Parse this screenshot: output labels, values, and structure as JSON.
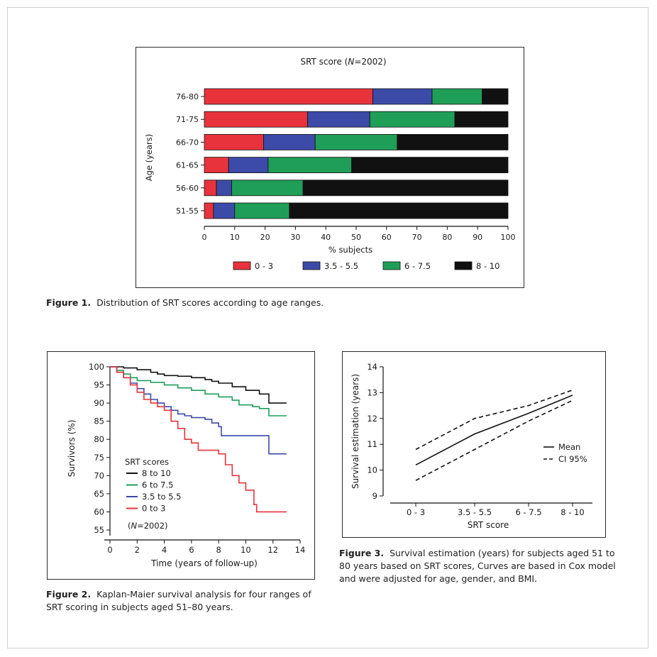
{
  "figure1": {
    "caption_label": "Figure 1.",
    "caption_text": "Distribution of SRT scores according to age ranges.",
    "title_prefix": "SRT score (",
    "title_n": "N",
    "title_suffix": "=2002)"
  },
  "figure2": {
    "caption_label": "Figure 2.",
    "caption_text": "Kaplan-Maier survival analysis for four ranges of SRT scoring in subjects aged 51–80 years.",
    "legend_title": "SRT scores",
    "n_prefix": "(",
    "n_italic": "N",
    "n_suffix": "=2002)"
  },
  "figure3": {
    "caption_label": "Figure 3.",
    "caption_text": "Survival estimation (years) for subjects aged 51 to 80 years based on SRT scores, Curves are based in Cox model and were adjusted for age, gender, and BMI."
  },
  "chart_data": [
    {
      "type": "bar",
      "orientation": "horizontal",
      "stacked": true,
      "title": "SRT score (N=2002)",
      "xlabel": "% subjects",
      "ylabel": "Age (years)",
      "xlim": [
        0,
        100
      ],
      "xticks": [
        0,
        10,
        20,
        30,
        40,
        50,
        60,
        70,
        80,
        90,
        100
      ],
      "categories": [
        "76-80",
        "71-75",
        "66-70",
        "61-65",
        "56-60",
        "51-55"
      ],
      "series": [
        {
          "name": "0 - 3",
          "color": "#e8333c",
          "values": [
            55.5,
            34,
            19.5,
            8,
            4,
            3
          ]
        },
        {
          "name": "3.5 - 5.5",
          "color": "#3c4aa8",
          "values": [
            19.5,
            20.5,
            17,
            13,
            5,
            7
          ]
        },
        {
          "name": "6 - 7.5",
          "color": "#1f9e58",
          "values": [
            16.5,
            28,
            27,
            27.5,
            23.5,
            18
          ]
        },
        {
          "name": "8 - 10",
          "color": "#111111",
          "values": [
            8.5,
            17.5,
            36.5,
            51.5,
            67.5,
            72
          ]
        }
      ],
      "legend_position": "bottom"
    },
    {
      "type": "line",
      "step": true,
      "xlabel": "Time (years of follow-up)",
      "ylabel": "Survivors (%)",
      "xlim": [
        0,
        14
      ],
      "ylim": [
        55,
        100
      ],
      "xticks": [
        0,
        2,
        4,
        6,
        8,
        10,
        12,
        14
      ],
      "yticks": [
        55,
        60,
        65,
        70,
        75,
        80,
        85,
        90,
        95,
        100
      ],
      "legend_position": "bottom-left",
      "series": [
        {
          "name": "8 to 10",
          "color": "#111111",
          "points": [
            [
              0,
              100
            ],
            [
              1,
              99.7
            ],
            [
              2,
              99.2
            ],
            [
              3,
              98.5
            ],
            [
              3.5,
              98
            ],
            [
              4,
              97.6
            ],
            [
              5,
              97.4
            ],
            [
              6,
              97
            ],
            [
              7,
              96.5
            ],
            [
              7.5,
              96
            ],
            [
              8,
              95.5
            ],
            [
              9,
              94.5
            ],
            [
              10,
              93.5
            ],
            [
              11,
              92.5
            ],
            [
              11.7,
              90
            ],
            [
              13,
              90
            ]
          ]
        },
        {
          "name": "6 to 7.5",
          "color": "#1f9e58",
          "points": [
            [
              0,
              100
            ],
            [
              0.5,
              99
            ],
            [
              1,
              98
            ],
            [
              1.5,
              97
            ],
            [
              2,
              96.2
            ],
            [
              3,
              95.7
            ],
            [
              4,
              95
            ],
            [
              5,
              94.2
            ],
            [
              6,
              93.5
            ],
            [
              7,
              92.5
            ],
            [
              8,
              91.7
            ],
            [
              9,
              90.8
            ],
            [
              9.5,
              89.5
            ],
            [
              10.5,
              89
            ],
            [
              11,
              88.5
            ],
            [
              11.7,
              86.5
            ],
            [
              13,
              86.5
            ]
          ]
        },
        {
          "name": "3.5 to 5.5",
          "color": "#3c4aa8",
          "points": [
            [
              0,
              100
            ],
            [
              0.5,
              98.5
            ],
            [
              1,
              97
            ],
            [
              1.5,
              95.5
            ],
            [
              2,
              94
            ],
            [
              2.5,
              92.5
            ],
            [
              3,
              91
            ],
            [
              3.5,
              90
            ],
            [
              4,
              89
            ],
            [
              4.5,
              88
            ],
            [
              5,
              87
            ],
            [
              5.5,
              86.5
            ],
            [
              6,
              86
            ],
            [
              7,
              85.5
            ],
            [
              7.5,
              84.5
            ],
            [
              8,
              83.5
            ],
            [
              8.2,
              81
            ],
            [
              11.7,
              81
            ],
            [
              11.7,
              76
            ],
            [
              13,
              76
            ]
          ]
        },
        {
          "name": "0 to 3",
          "color": "#e8333c",
          "points": [
            [
              0,
              100
            ],
            [
              0.5,
              98.5
            ],
            [
              1,
              97
            ],
            [
              1.5,
              95
            ],
            [
              2,
              93
            ],
            [
              2.5,
              91
            ],
            [
              3,
              90
            ],
            [
              3.5,
              89
            ],
            [
              4,
              88
            ],
            [
              4.5,
              85
            ],
            [
              5,
              83
            ],
            [
              5.5,
              80
            ],
            [
              6,
              79
            ],
            [
              6.5,
              77
            ],
            [
              7,
              77
            ],
            [
              8,
              76
            ],
            [
              8.5,
              73
            ],
            [
              9,
              70
            ],
            [
              9.5,
              68
            ],
            [
              10,
              66
            ],
            [
              10.5,
              66
            ],
            [
              10.6,
              62
            ],
            [
              10.8,
              60
            ],
            [
              13,
              60
            ]
          ]
        }
      ],
      "annotation": "(N=2002)"
    },
    {
      "type": "line",
      "xlabel": "SRT score",
      "ylabel": "Survival estimation (years)",
      "categories": [
        "0 - 3",
        "3.5 - 5.5",
        "6 - 7.5",
        "8 - 10"
      ],
      "ylim": [
        9,
        14
      ],
      "yticks": [
        9,
        10,
        11,
        12,
        13,
        14
      ],
      "legend_position": "right",
      "series": [
        {
          "name": "Mean",
          "style": "solid",
          "values": [
            10.2,
            11.4,
            12.2,
            12.9
          ]
        },
        {
          "name": "CI 95%",
          "style": "dashed",
          "values": [
            10.8,
            12.0,
            12.5,
            13.1
          ]
        },
        {
          "name": "CI 95%",
          "style": "dashed",
          "legend": false,
          "values": [
            9.6,
            10.8,
            11.9,
            12.7
          ]
        }
      ]
    }
  ]
}
